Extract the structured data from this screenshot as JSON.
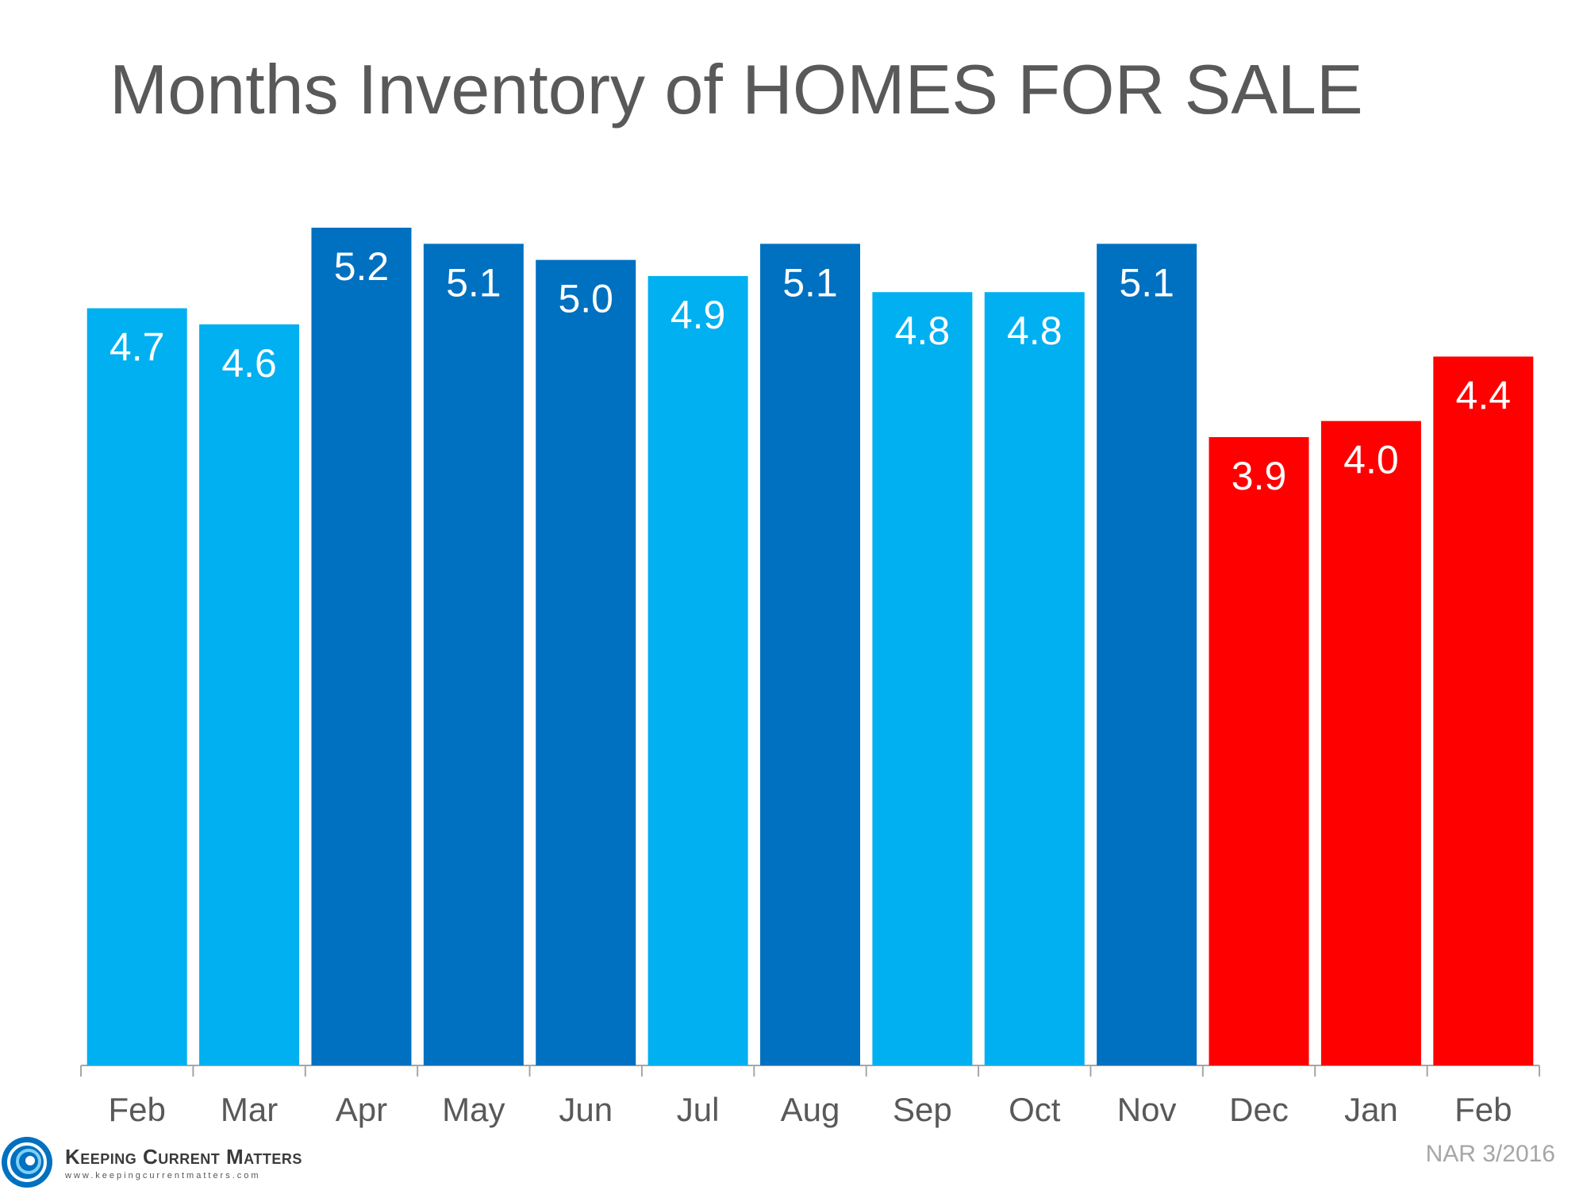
{
  "chart_data": {
    "type": "bar",
    "title": "Months Inventory of HOMES FOR SALE",
    "categories": [
      "Feb",
      "Mar",
      "Apr",
      "May",
      "Jun",
      "Jul",
      "Aug",
      "Sep",
      "Oct",
      "Nov",
      "Dec",
      "Jan",
      "Feb"
    ],
    "values": [
      4.7,
      4.6,
      5.2,
      5.1,
      5.0,
      4.9,
      5.1,
      4.8,
      4.8,
      5.1,
      3.9,
      4.0,
      4.4
    ],
    "data_labels": [
      "4.7",
      "4.6",
      "5.2",
      "5.1",
      "5.0",
      "4.9",
      "5.1",
      "4.8",
      "4.8",
      "5.1",
      "3.9",
      "4.0",
      "4.4"
    ],
    "bar_colors": [
      "#00b0f0",
      "#00b0f0",
      "#0070c0",
      "#0070c0",
      "#0070c0",
      "#00b0f0",
      "#0070c0",
      "#00b0f0",
      "#00b0f0",
      "#0070c0",
      "#ff0000",
      "#ff0000",
      "#ff0000"
    ],
    "ylim": [
      0,
      5.5
    ],
    "grid": false,
    "legend": "none"
  },
  "footer": {
    "source": "NAR 3/2016",
    "logo_name": "Keeping Current Matters",
    "logo_url": "www.keepingcurrentmatters.com"
  },
  "colors": {
    "title": "#595959",
    "axis": "#a6a6a6",
    "label_text": "#ffffff",
    "tick_text": "#595959",
    "logo_blue": "#0070c0"
  }
}
